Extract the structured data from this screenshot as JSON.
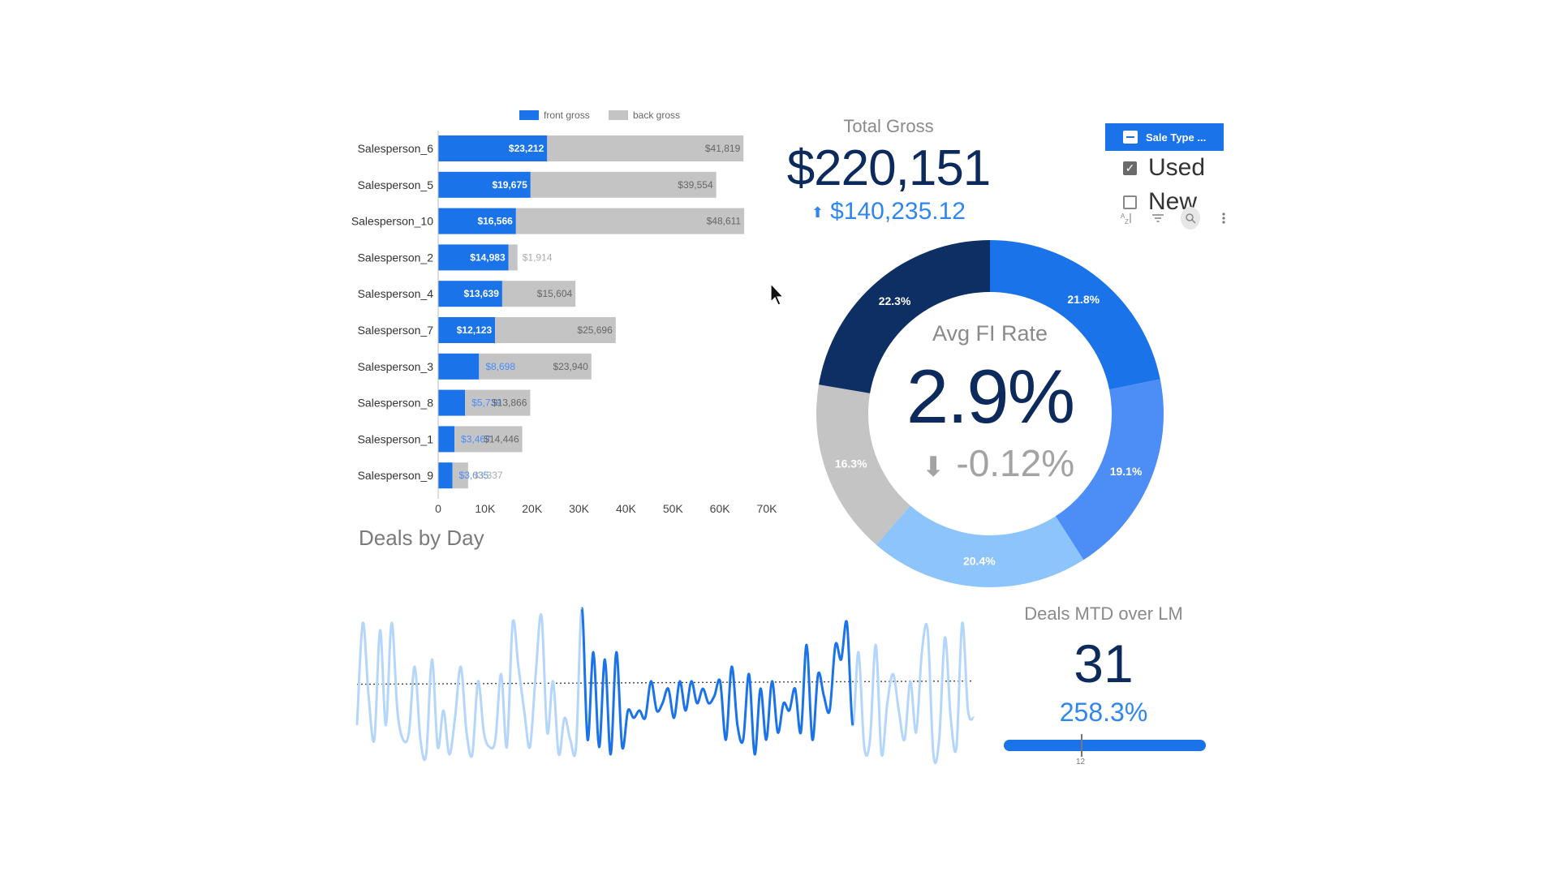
{
  "bar_legend": [
    "front gross",
    "back gross"
  ],
  "chart_data": [
    {
      "type": "bar",
      "orientation": "horizontal",
      "stacked": true,
      "categories": [
        "Salesperson_6",
        "Salesperson_5",
        "Salesperson_10",
        "Salesperson_2",
        "Salesperson_4",
        "Salesperson_7",
        "Salesperson_3",
        "Salesperson_8",
        "Salesperson_1",
        "Salesperson_9"
      ],
      "series": [
        {
          "name": "front gross",
          "color": "#1a73e8",
          "values": [
            23212,
            19675,
            16566,
            14983,
            13639,
            12123,
            8698,
            5739,
            3467,
            3035
          ],
          "labels": [
            "$23,212",
            "$19,675",
            "$16,566",
            "$14,983",
            "$13,639",
            "$12,123",
            "$8,698",
            "$5,739",
            "$3,467",
            "$3,035"
          ]
        },
        {
          "name": "back gross",
          "color": "#c4c4c4",
          "values": [
            41819,
            39554,
            48611,
            1914,
            15604,
            25696,
            23940,
            13866,
            14446,
            3337
          ],
          "labels": [
            "$41,819",
            "$39,554",
            "$48,611",
            "$1,914",
            "$15,604",
            "$25,696",
            "$23,940",
            "$13,866",
            "$14,446",
            "$3,337"
          ]
        }
      ],
      "x_ticks": [
        "0",
        "10K",
        "20K",
        "30K",
        "40K",
        "50K",
        "60K",
        "70K"
      ],
      "xlim": [
        0,
        70000
      ],
      "legend": "top"
    },
    {
      "type": "pie",
      "donut": true,
      "slices": [
        {
          "label": "21.8%",
          "value": 21.8,
          "color": "#1a73e8"
        },
        {
          "label": "19.1%",
          "value": 19.1,
          "color": "#4c8df6"
        },
        {
          "label": "20.4%",
          "value": 20.4,
          "color": "#8cc4fb"
        },
        {
          "label": "16.3%",
          "value": 16.3,
          "color": "#c4c4c4"
        },
        {
          "label": "22.3%",
          "value": 22.3,
          "color": "#0d2f63"
        }
      ]
    },
    {
      "type": "line",
      "title": "Deals by Day",
      "current_range": [
        39,
        86
      ],
      "series": [
        {
          "values": [
            0.2,
            0.9,
            0.4,
            0.1,
            0.85,
            0.2,
            0.9,
            0.3,
            0.1,
            0.15,
            0.6,
            0.1,
            0.0,
            0.65,
            0.05,
            0.3,
            0.0,
            0.25,
            0.6,
            0.15,
            0.0,
            0.5,
            0.15,
            0.05,
            0.1,
            0.55,
            0.05,
            0.9,
            0.6,
            0.3,
            0.05,
            0.55,
            0.95,
            0.15,
            0.5,
            0.0,
            0.25,
            0.1,
            0.05,
            1.0,
            0.1,
            0.7,
            0.05,
            0.65,
            0.0,
            0.7,
            0.05,
            0.3,
            0.25,
            0.3,
            0.25,
            0.5,
            0.3,
            0.35,
            0.45,
            0.25,
            0.5,
            0.3,
            0.5,
            0.35,
            0.45,
            0.35,
            0.4,
            0.5,
            0.1,
            0.6,
            0.2,
            0.1,
            0.55,
            0.0,
            0.45,
            0.1,
            0.5,
            0.15,
            0.35,
            0.3,
            0.45,
            0.15,
            0.75,
            0.1,
            0.55,
            0.4,
            0.3,
            0.75,
            0.65,
            0.9,
            0.2,
            0.7,
            0.05,
            0.1,
            0.75,
            0.0,
            0.35,
            0.55,
            0.3,
            0.1,
            0.5,
            0.15,
            0.7,
            0.85,
            0.0,
            0.1,
            0.8,
            0.25,
            0.05,
            0.9,
            0.3,
            0.25
          ]
        },
        {
          "name": "average",
          "values": [
            0.48,
            0.48
          ]
        }
      ]
    }
  ],
  "total_gross": {
    "title": "Total Gross",
    "value": "$220,151",
    "delta": "$140,235.12"
  },
  "avg_fi": {
    "title": "Avg FI Rate",
    "value": "2.9%",
    "delta": "-0.12%"
  },
  "deals_by_day": {
    "title": "Deals by Day"
  },
  "deals_mtd": {
    "title": "Deals MTD over LM",
    "value": "31",
    "delta": "258.3%",
    "progress": 1.0,
    "marker_label": "12"
  },
  "filter": {
    "header": "Sale Type ...",
    "options": [
      {
        "label": "Used",
        "checked": true
      },
      {
        "label": "New",
        "checked": false
      }
    ]
  },
  "icons": {
    "sort": "sort-az-icon",
    "filter": "filter-icon",
    "search": "search-icon",
    "more": "more-vertical-icon"
  }
}
